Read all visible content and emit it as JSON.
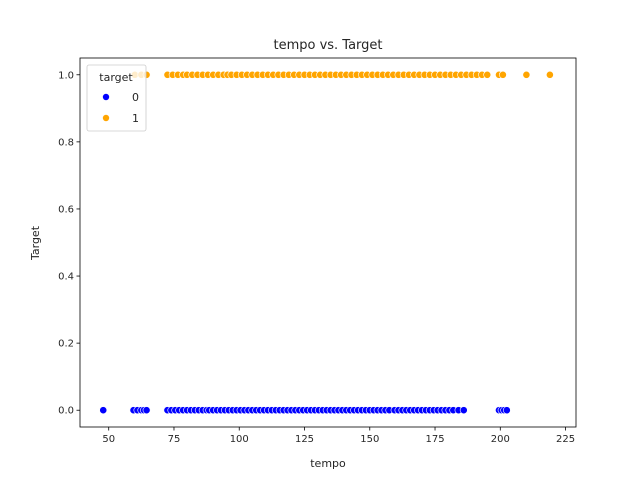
{
  "chart_data": {
    "type": "scatter",
    "title": "tempo vs. Target",
    "xlabel": "tempo",
    "ylabel": "Target",
    "xlim": [
      39,
      229
    ],
    "ylim": [
      -0.05,
      1.05
    ],
    "xticks": [
      50,
      75,
      100,
      125,
      150,
      175,
      200,
      225
    ],
    "yticks": [
      0.0,
      0.2,
      0.4,
      0.6,
      0.8,
      1.0
    ],
    "xtick_labels": [
      "50",
      "75",
      "100",
      "125",
      "150",
      "175",
      "200",
      "225"
    ],
    "ytick_labels": [
      "0.0",
      "0.2",
      "0.4",
      "0.6",
      "0.8",
      "1.0"
    ],
    "grid": false,
    "legend": {
      "title": "target",
      "placement": "top-left"
    },
    "series": [
      {
        "name": "0",
        "color": "#0000ff",
        "y": 0,
        "x": [
          47.9,
          59.5,
          61.0,
          62.5,
          63.5,
          64.5,
          72.5,
          74.0,
          75.5,
          77.0,
          78.5,
          80.0,
          81.5,
          83.0,
          84.5,
          86.0,
          87.5,
          88.5,
          90.0,
          91.5,
          93.0,
          94.5,
          96.0,
          97.5,
          99.0,
          100.5,
          102.0,
          103.5,
          105.0,
          106.5,
          108.0,
          109.5,
          111.0,
          112.5,
          114.0,
          115.5,
          117.0,
          118.5,
          120.0,
          121.5,
          123.0,
          124.5,
          126.0,
          127.5,
          129.0,
          130.5,
          132.0,
          133.5,
          135.0,
          136.5,
          138.0,
          139.5,
          141.0,
          142.5,
          144.0,
          145.5,
          147.0,
          148.5,
          150.0,
          151.5,
          153.0,
          154.5,
          156.0,
          157.5,
          159.5,
          161.0,
          162.5,
          164.0,
          165.5,
          167.0,
          168.5,
          170.0,
          171.5,
          173.0,
          174.5,
          176.0,
          177.5,
          179.0,
          180.5,
          182.0,
          184.0,
          186.0,
          199.5,
          200.5,
          201.5,
          202.5
        ]
      },
      {
        "name": "1",
        "color": "#ffa500",
        "y": 1,
        "x": [
          60.0,
          62.5,
          64.5,
          72.5,
          74.5,
          76.5,
          78.5,
          80.0,
          82.0,
          84.0,
          86.0,
          88.0,
          90.0,
          92.0,
          94.0,
          95.5,
          97.0,
          99.0,
          101.0,
          103.0,
          105.0,
          107.0,
          109.0,
          111.0,
          113.0,
          115.0,
          117.0,
          119.0,
          121.0,
          123.0,
          125.0,
          127.0,
          129.0,
          131.0,
          133.0,
          135.0,
          137.0,
          139.0,
          141.0,
          143.0,
          145.0,
          147.0,
          149.0,
          151.0,
          153.0,
          155.0,
          157.0,
          159.0,
          161.0,
          163.0,
          165.0,
          167.0,
          169.0,
          171.0,
          173.0,
          175.0,
          177.0,
          179.0,
          181.0,
          183.0,
          185.0,
          187.0,
          189.0,
          191.0,
          193.0,
          195.0,
          199.5,
          201.0,
          210.0,
          219.0
        ]
      }
    ]
  }
}
